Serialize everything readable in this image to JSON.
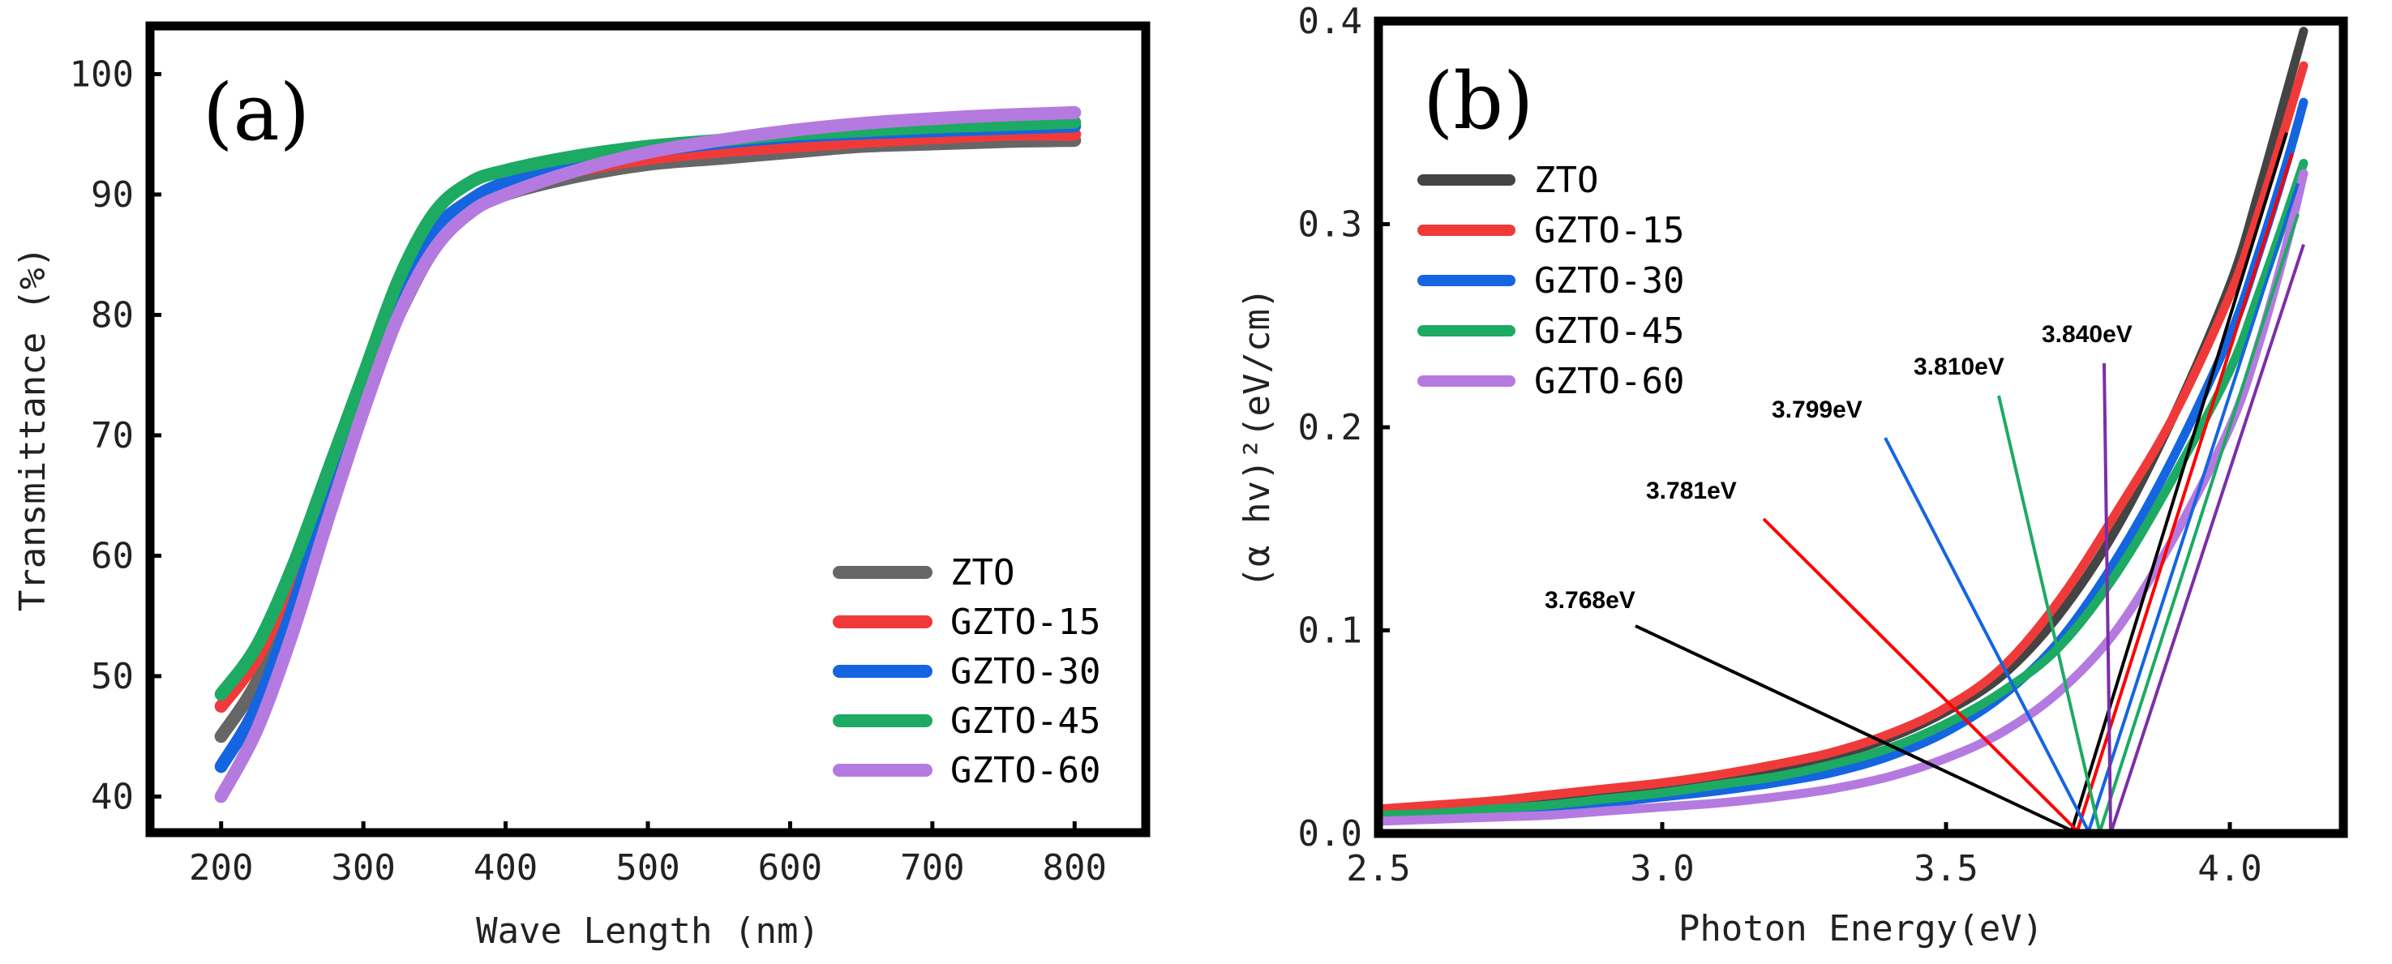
{
  "chart_data": [
    {
      "panel": "(a)",
      "type": "line",
      "xlabel": "Wave Length (nm)",
      "ylabel": "Transmittance (%)",
      "xlim": [
        150,
        850
      ],
      "ylim": [
        37,
        104
      ],
      "xticks": [
        200,
        300,
        400,
        500,
        600,
        700,
        800
      ],
      "yticks": [
        40,
        50,
        60,
        70,
        80,
        90,
        100
      ],
      "legend_position": "bottom-right",
      "x": [
        200,
        225,
        250,
        275,
        300,
        325,
        350,
        375,
        400,
        450,
        500,
        550,
        600,
        650,
        700,
        750,
        800
      ],
      "series": [
        {
          "name": "ZTO",
          "color": "#666666",
          "values": [
            45.0,
            49.5,
            56.5,
            65.0,
            73.0,
            80.0,
            85.5,
            88.5,
            90.0,
            91.5,
            92.5,
            93.0,
            93.5,
            94.0,
            94.2,
            94.4,
            94.5
          ]
        },
        {
          "name": "GZTO-15",
          "color": "#f03a3a",
          "values": [
            47.5,
            51.5,
            58.0,
            66.0,
            73.5,
            81.0,
            86.5,
            89.0,
            90.5,
            92.0,
            93.0,
            93.6,
            94.0,
            94.4,
            94.7,
            95.0,
            95.0
          ]
        },
        {
          "name": "GZTO-30",
          "color": "#1565e0",
          "values": [
            42.5,
            47.5,
            55.5,
            64.5,
            73.0,
            81.5,
            87.0,
            89.5,
            91.0,
            92.8,
            93.6,
            94.3,
            94.8,
            95.1,
            95.3,
            95.5,
            95.7
          ]
        },
        {
          "name": "GZTO-45",
          "color": "#1daa63",
          "values": [
            48.5,
            52.5,
            59.0,
            67.0,
            75.0,
            83.0,
            88.5,
            91.0,
            92.0,
            93.2,
            94.0,
            94.5,
            95.0,
            95.3,
            95.6,
            95.8,
            96.0
          ]
        },
        {
          "name": "GZTO-60",
          "color": "#b57ae0",
          "values": [
            40.0,
            45.5,
            53.5,
            63.0,
            72.0,
            80.0,
            85.5,
            88.5,
            90.0,
            92.0,
            93.5,
            94.5,
            95.3,
            95.9,
            96.3,
            96.6,
            96.8
          ]
        }
      ]
    },
    {
      "panel": "(b)",
      "type": "line",
      "xlabel": "Photon Energy(eV)",
      "ylabel": "(α hv)²(eV/cm)",
      "xlim": [
        2.5,
        4.2
      ],
      "ylim": [
        0.0,
        0.4
      ],
      "xticks": [
        2.5,
        3.0,
        3.5,
        4.0
      ],
      "xtick_labels": [
        "2.5",
        "3.0",
        "3.5",
        "4.0"
      ],
      "yticks": [
        0.0,
        0.1,
        0.2,
        0.3,
        0.4
      ],
      "ytick_labels": [
        "0.0",
        "0.1",
        "0.2",
        "0.3",
        "0.4"
      ],
      "legend_position": "top-left",
      "x": [
        2.5,
        2.6,
        2.7,
        2.8,
        2.9,
        3.0,
        3.1,
        3.2,
        3.3,
        3.4,
        3.5,
        3.6,
        3.7,
        3.8,
        3.9,
        4.0,
        4.05,
        4.1,
        4.13
      ],
      "series": [
        {
          "name": "ZTO",
          "color": "#444444",
          "band_gap": "3.768eV",
          "values": [
            0.01,
            0.012,
            0.014,
            0.017,
            0.02,
            0.023,
            0.027,
            0.032,
            0.038,
            0.047,
            0.06,
            0.078,
            0.108,
            0.15,
            0.205,
            0.27,
            0.315,
            0.365,
            0.395
          ]
        },
        {
          "name": "GZTO-15",
          "color": "#f03a3a",
          "band_gap": "3.781eV",
          "values": [
            0.012,
            0.014,
            0.016,
            0.019,
            0.022,
            0.025,
            0.029,
            0.034,
            0.04,
            0.049,
            0.062,
            0.082,
            0.115,
            0.158,
            0.205,
            0.265,
            0.305,
            0.35,
            0.378
          ]
        },
        {
          "name": "GZTO-30",
          "color": "#1565e0",
          "band_gap": "3.799eV",
          "values": [
            0.008,
            0.009,
            0.011,
            0.013,
            0.015,
            0.018,
            0.021,
            0.025,
            0.03,
            0.038,
            0.05,
            0.068,
            0.095,
            0.135,
            0.185,
            0.245,
            0.285,
            0.33,
            0.36
          ]
        },
        {
          "name": "GZTO-45",
          "color": "#1daa63",
          "band_gap": "3.810eV",
          "values": [
            0.009,
            0.01,
            0.012,
            0.014,
            0.017,
            0.02,
            0.024,
            0.028,
            0.034,
            0.042,
            0.054,
            0.07,
            0.092,
            0.128,
            0.175,
            0.228,
            0.265,
            0.305,
            0.33
          ]
        },
        {
          "name": "GZTO-60",
          "color": "#b57ae0",
          "band_gap": "3.840eV",
          "values": [
            0.006,
            0.007,
            0.008,
            0.009,
            0.011,
            0.013,
            0.015,
            0.018,
            0.022,
            0.028,
            0.037,
            0.05,
            0.07,
            0.1,
            0.145,
            0.2,
            0.24,
            0.29,
            0.325
          ]
        }
      ],
      "annotations": [
        {
          "text": "3.768eV",
          "color": "#000000",
          "target_x": 3.72
        },
        {
          "text": "3.781eV",
          "color": "#ff0000",
          "target_x": 3.73
        },
        {
          "text": "3.799eV",
          "color": "#1565e0",
          "target_x": 3.75
        },
        {
          "text": "3.810eV",
          "color": "#1daa63",
          "target_x": 3.77
        },
        {
          "text": "3.840eV",
          "color": "#7b2fa8",
          "target_x": 3.79
        }
      ]
    }
  ]
}
